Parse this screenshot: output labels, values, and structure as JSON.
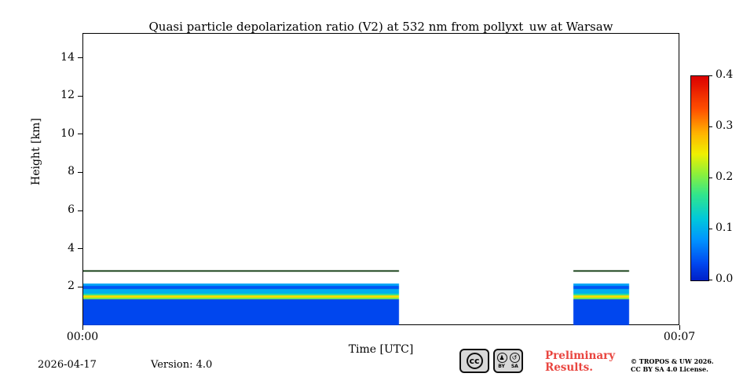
{
  "chart_data": {
    "type": "heatmap",
    "title": "Quasi particle depolarization ratio (V2) at 532 nm from pollyxt_uw at Warsaw",
    "xlabel": "Time [UTC]",
    "ylabel": "Height [km]",
    "x_range_minutes": [
      0,
      7
    ],
    "x_ticks": [
      {
        "minute": 0,
        "label": "00:00"
      },
      {
        "minute": 7,
        "label": "00:07"
      }
    ],
    "y_ticks_km": [
      2,
      4,
      6,
      8,
      10,
      12,
      14
    ],
    "ylim_km": [
      0,
      15.3
    ],
    "grid": false,
    "colorbar": {
      "min": 0.0,
      "max": 0.4,
      "ticks": [
        {
          "value": 0.0,
          "label": "0.0"
        },
        {
          "value": 0.1,
          "label": "0.1"
        },
        {
          "value": 0.2,
          "label": "0.2"
        },
        {
          "value": 0.3,
          "label": "0.3"
        },
        {
          "value": 0.4,
          "label": "0.4"
        }
      ],
      "colormap": "jet",
      "stops": [
        {
          "t": 0.0,
          "color": "#0020c8"
        },
        {
          "t": 0.08,
          "color": "#0048f0"
        },
        {
          "t": 0.2,
          "color": "#0096ff"
        },
        {
          "t": 0.3,
          "color": "#00c8dc"
        },
        {
          "t": 0.42,
          "color": "#32e68c"
        },
        {
          "t": 0.52,
          "color": "#8cf03c"
        },
        {
          "t": 0.62,
          "color": "#f0f000"
        },
        {
          "t": 0.72,
          "color": "#ffb400"
        },
        {
          "t": 0.84,
          "color": "#ff5000"
        },
        {
          "t": 1.0,
          "color": "#dc0000"
        }
      ]
    },
    "segments": [
      {
        "t_start_min": 0.0,
        "t_end_min": 3.7
      },
      {
        "t_start_min": 5.75,
        "t_end_min": 6.4
      }
    ],
    "profile_layers": [
      {
        "bottom_km": 0.05,
        "top_km": 1.4,
        "value": 0.03
      },
      {
        "bottom_km": 1.4,
        "top_km": 1.48,
        "value": 0.2
      },
      {
        "bottom_km": 1.48,
        "top_km": 1.62,
        "value": 0.26
      },
      {
        "bottom_km": 1.62,
        "top_km": 1.7,
        "value": 0.16
      },
      {
        "bottom_km": 1.7,
        "top_km": 1.92,
        "value": 0.1
      },
      {
        "bottom_km": 1.92,
        "top_km": 2.1,
        "value": 0.04
      },
      {
        "bottom_km": 2.1,
        "top_km": 2.22,
        "value": 0.09
      }
    ],
    "cloud_base_line": {
      "height_km": 2.88,
      "color": "#1e461e",
      "thickness_px": 2
    }
  },
  "footer": {
    "date": "2026-04-17",
    "version": "Version: 4.0",
    "preliminary_line1": "Preliminary",
    "preliminary_line2": "Results.",
    "copyright_line1": "© TROPOS & UW 2026.",
    "copyright_line2": "CC BY SA 4.0 License."
  },
  "badge": {
    "cc_text": "cc",
    "by_label": "BY",
    "sa_label": "SA",
    "by_icon": "♟",
    "sa_icon": "↺"
  },
  "colors": {
    "preliminary_red": "#e9453f",
    "axis": "#000000",
    "background": "#ffffff"
  }
}
